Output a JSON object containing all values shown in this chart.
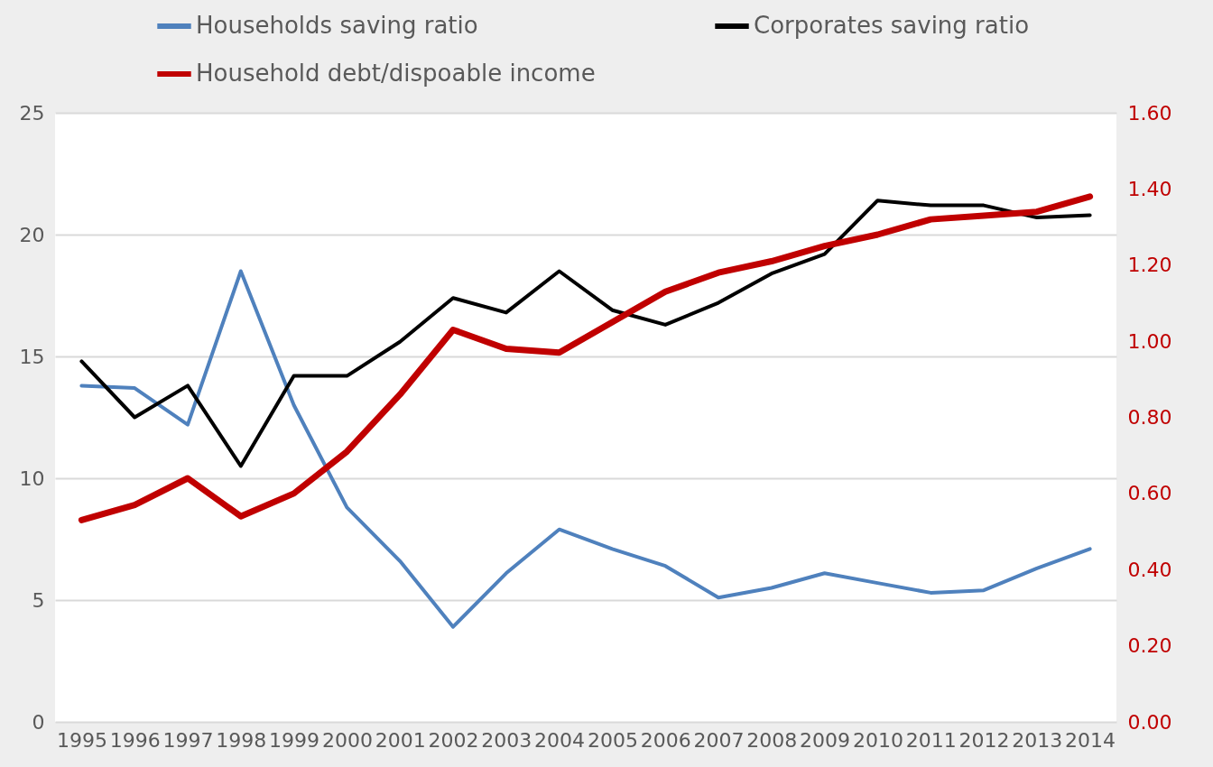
{
  "chart_data": {
    "type": "line",
    "categories": [
      "1995",
      "1996",
      "1997",
      "1998",
      "1999",
      "2000",
      "2001",
      "2002",
      "2003",
      "2004",
      "2005",
      "2006",
      "2007",
      "2008",
      "2009",
      "2010",
      "2011",
      "2012",
      "2013",
      "2014"
    ],
    "series": [
      {
        "name": "Households saving ratio",
        "color": "#4f81bd",
        "values": [
          13.8,
          13.7,
          12.2,
          18.5,
          13.0,
          8.8,
          6.6,
          3.9,
          6.1,
          7.9,
          7.1,
          6.4,
          5.1,
          5.5,
          6.1,
          5.7,
          5.3,
          5.4,
          6.3,
          7.1
        ]
      },
      {
        "name": "Corporates saving ratio",
        "color": "#000000",
        "values": [
          14.8,
          12.5,
          13.8,
          10.5,
          14.2,
          14.2,
          15.6,
          17.4,
          16.8,
          18.5,
          16.9,
          16.3,
          17.2,
          18.4,
          19.2,
          21.4,
          21.2,
          21.2,
          20.7,
          20.8
        ]
      },
      {
        "name": "Household debt/dispoable income",
        "color": "#c00000",
        "axis": "y2",
        "values": [
          0.53,
          0.57,
          0.64,
          0.54,
          0.6,
          0.71,
          0.86,
          1.03,
          0.98,
          0.97,
          1.05,
          1.13,
          1.18,
          1.21,
          1.25,
          1.28,
          1.32,
          1.33,
          1.34,
          1.38
        ]
      }
    ],
    "ylim": [
      0,
      25
    ],
    "yticks": [
      0,
      5,
      10,
      15,
      20,
      25
    ],
    "y2lim": [
      0,
      1.6
    ],
    "y2ticks": [
      {
        "value": 0,
        "label": "0.00"
      },
      {
        "value": 0.2,
        "label": "0.20"
      },
      {
        "value": 0.4,
        "label": "0.40"
      },
      {
        "value": 0.6,
        "label": "0.60"
      },
      {
        "value": 0.8,
        "label": "0.80"
      },
      {
        "value": 1.0,
        "label": "1.00"
      },
      {
        "value": 1.2,
        "label": "1.20"
      },
      {
        "value": 1.4,
        "label": "1.40"
      },
      {
        "value": 1.6,
        "label": "1.60"
      }
    ],
    "grid": "y",
    "legend": "top",
    "marker": "none",
    "line_style": "solid"
  }
}
